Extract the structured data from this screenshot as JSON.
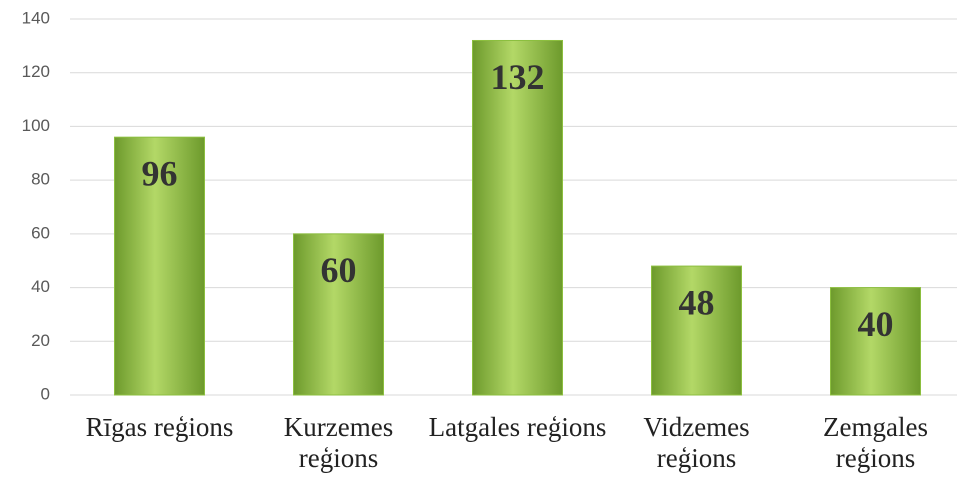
{
  "chart_data": {
    "type": "bar",
    "categories": [
      "Rīgas reģions",
      "Kurzemes reģions",
      "Latgales reģions",
      "Vidzemes reģions",
      "Zemgales reģions"
    ],
    "values": [
      96,
      60,
      132,
      48,
      40
    ],
    "color": "#8cbf3f",
    "ylim": [
      0,
      140
    ],
    "yticks": [
      0,
      20,
      40,
      60,
      80,
      100,
      120,
      140
    ],
    "grid": true
  }
}
